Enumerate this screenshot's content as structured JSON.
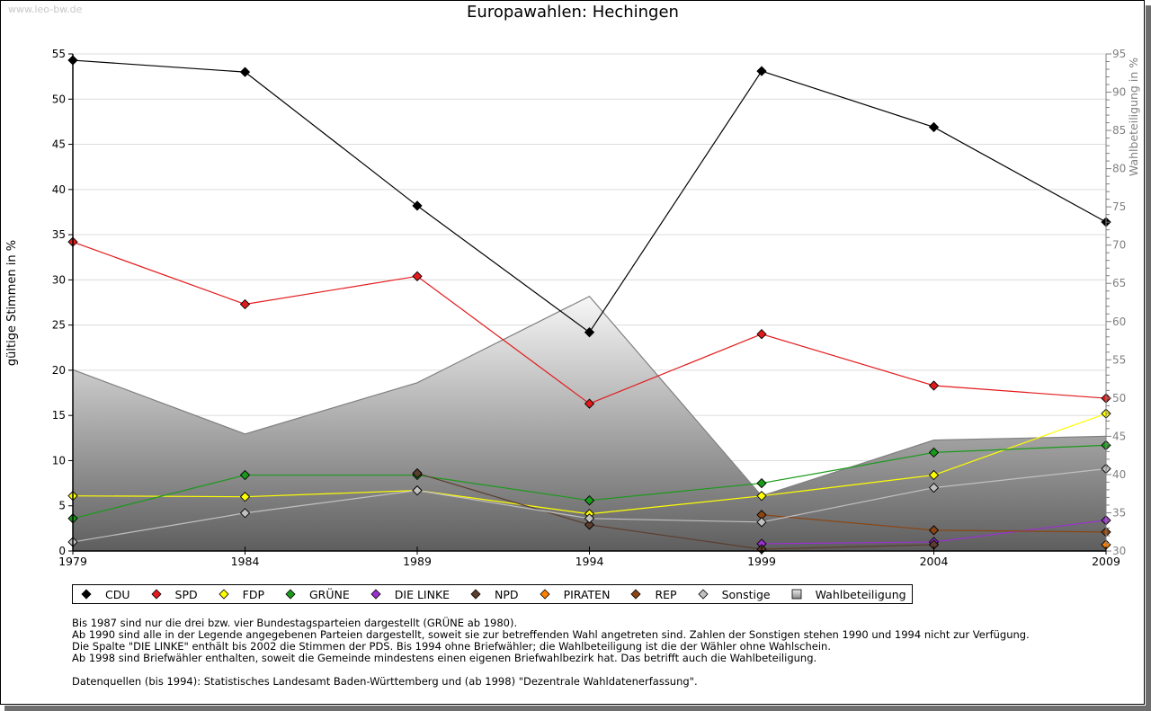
{
  "watermark": "www.leo-bw.de",
  "title": "Europawahlen: Hechingen",
  "chart_data": {
    "type": "line",
    "title": "Europawahlen: Hechingen",
    "xlabel": "",
    "ylabel": "gültige Stimmen in %",
    "y2label": "Wahlbeteiligung in %",
    "x": [
      1979,
      1984,
      1989,
      1994,
      1999,
      2004,
      2009
    ],
    "x_ticks": [
      "1979",
      "1984",
      "1989",
      "1994",
      "1999",
      "2004",
      "2009"
    ],
    "ylim": [
      0,
      55
    ],
    "y_ticks": [
      "0",
      "5",
      "10",
      "15",
      "20",
      "25",
      "30",
      "35",
      "40",
      "45",
      "50",
      "55"
    ],
    "y2lim": [
      30,
      95
    ],
    "y2_ticks": [
      "30",
      "35",
      "40",
      "45",
      "50",
      "55",
      "60",
      "65",
      "70",
      "75",
      "80",
      "85",
      "90",
      "95"
    ],
    "grid": true,
    "legend_position": "bottom",
    "series": [
      {
        "name": "CDU",
        "color": "#000000",
        "values": [
          54.3,
          53.0,
          38.2,
          24.2,
          53.1,
          46.9,
          36.4
        ]
      },
      {
        "name": "SPD",
        "color": "#e31a1c",
        "values": [
          34.2,
          27.3,
          30.4,
          16.3,
          24.0,
          18.3,
          16.9
        ]
      },
      {
        "name": "FDP",
        "color": "#ffff00",
        "values": [
          6.1,
          6.0,
          6.7,
          4.1,
          6.1,
          8.4,
          15.2
        ]
      },
      {
        "name": "GRÜNE",
        "color": "#1a9a1a",
        "values": [
          3.6,
          8.4,
          8.4,
          5.6,
          7.5,
          10.9,
          11.7
        ]
      },
      {
        "name": "DIE LINKE",
        "color": "#9b30d0",
        "values": [
          null,
          null,
          null,
          null,
          0.8,
          1.0,
          3.4
        ]
      },
      {
        "name": "NPD",
        "color": "#5c3d2e",
        "values": [
          null,
          null,
          8.6,
          2.9,
          0.2,
          0.7,
          null
        ]
      },
      {
        "name": "PIRATEN",
        "color": "#ff8000",
        "values": [
          null,
          null,
          null,
          null,
          null,
          null,
          0.7
        ]
      },
      {
        "name": "REP",
        "color": "#8b4513",
        "values": [
          null,
          null,
          null,
          null,
          4.0,
          2.3,
          2.1
        ]
      },
      {
        "name": "Sonstige",
        "color": "#c0c0c0",
        "values": [
          1.0,
          4.2,
          6.7,
          3.6,
          3.2,
          7.0,
          9.1
        ]
      }
    ],
    "area_series": {
      "name": "Wahlbeteiligung",
      "axis": "right",
      "values": [
        53.7,
        45.3,
        52.0,
        63.3,
        37.2,
        44.5,
        45.0
      ]
    }
  },
  "legend": [
    {
      "label": "CDU",
      "color": "#000000",
      "shape": "diamond"
    },
    {
      "label": "SPD",
      "color": "#e31a1c",
      "shape": "diamond"
    },
    {
      "label": "FDP",
      "color": "#ffff00",
      "shape": "diamond"
    },
    {
      "label": "GRÜNE",
      "color": "#1a9a1a",
      "shape": "diamond"
    },
    {
      "label": "DIE LINKE",
      "color": "#9b30d0",
      "shape": "diamond"
    },
    {
      "label": "NPD",
      "color": "#5c3d2e",
      "shape": "diamond"
    },
    {
      "label": "PIRATEN",
      "color": "#ff8000",
      "shape": "diamond"
    },
    {
      "label": "REP",
      "color": "#8b4513",
      "shape": "diamond"
    },
    {
      "label": "Sonstige",
      "color": "#c0c0c0",
      "shape": "diamond"
    },
    {
      "label": "Wahlbeteiligung",
      "color": "#a0a0a0",
      "shape": "square"
    }
  ],
  "notes": [
    "Bis 1987 sind nur die drei bzw. vier Bundestagsparteien dargestellt (GRÜNE ab 1980).",
    "Ab 1990 sind alle in der Legende angegebenen Parteien dargestellt, soweit sie zur betreffenden Wahl angetreten sind. Zahlen der Sonstigen stehen 1990 und 1994 nicht zur Verfügung.",
    "Die Spalte \"DIE LINKE\" enthält bis 2002 die Stimmen der PDS. Bis 1994 ohne Briefwähler; die Wahlbeteiligung ist die der Wähler ohne Wahlschein.",
    "Ab 1998 sind Briefwähler enthalten, soweit die Gemeinde mindestens einen eigenen Briefwahlbezirk hat. Das betrifft auch die Wahlbeteiligung."
  ],
  "sources": "Datenquellen (bis 1994): Statistisches Landesamt Baden-Württemberg und (ab 1998) \"Dezentrale Wahldatenerfassung\"."
}
